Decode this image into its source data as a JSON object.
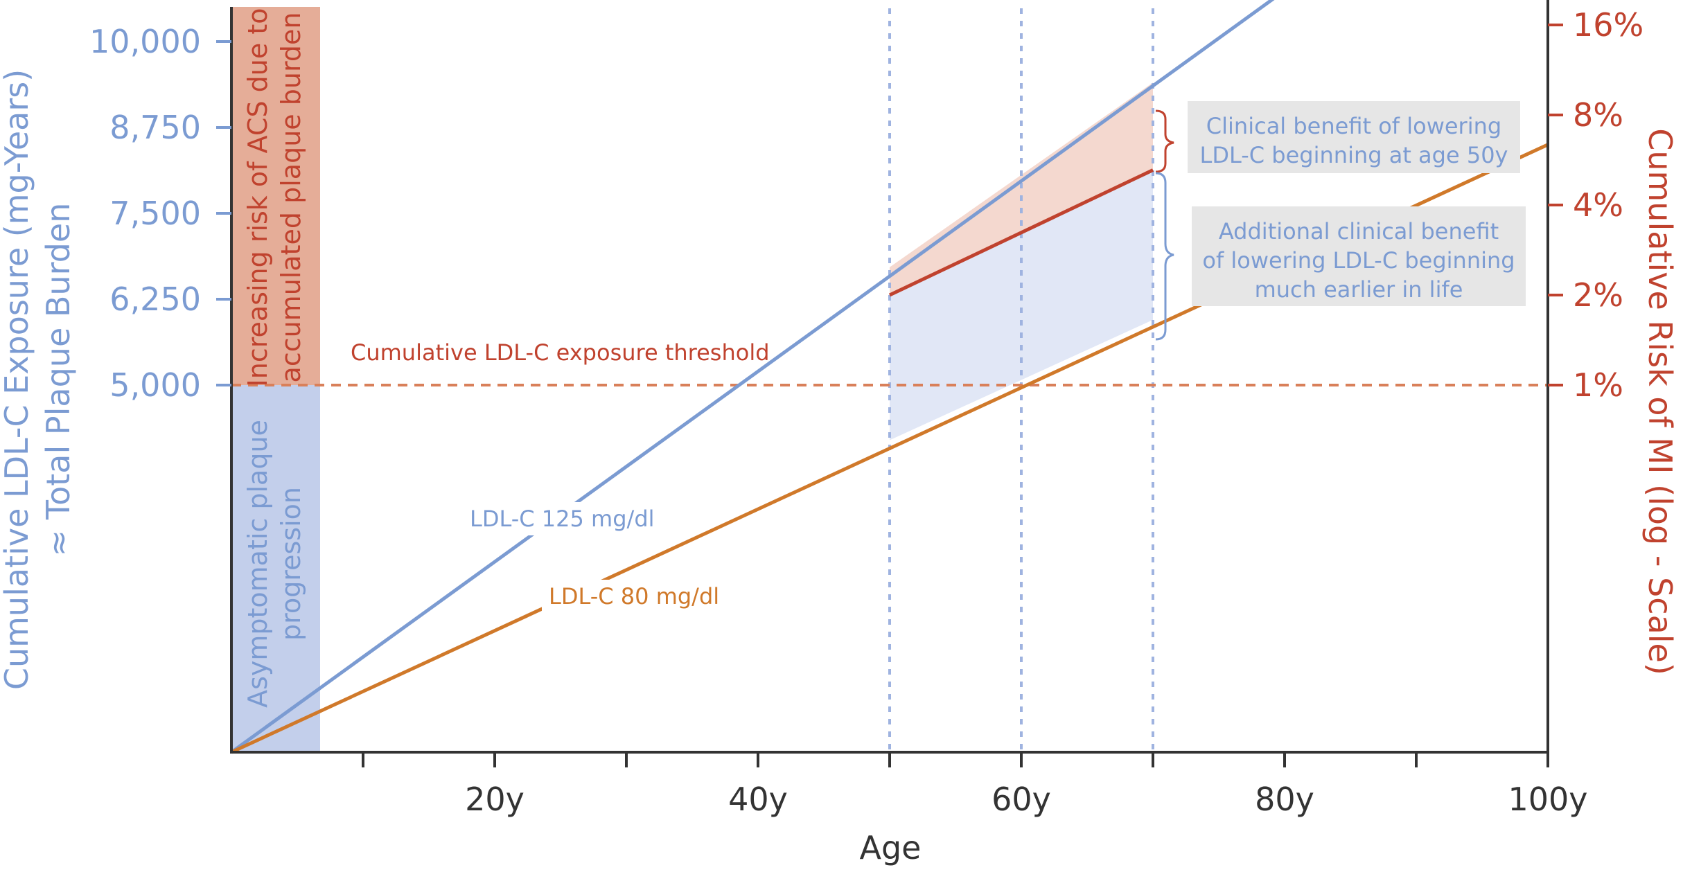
{
  "chart_data": {
    "type": "line",
    "x_axis": {
      "title": "Age",
      "ticks": [
        10,
        20,
        30,
        40,
        50,
        60,
        70,
        80,
        90,
        100
      ],
      "tick_labels": [
        "",
        "20y",
        "",
        "40y",
        "",
        "60y",
        "",
        "80y",
        "",
        "100y"
      ],
      "range": [
        0,
        100
      ]
    },
    "y_left": {
      "title_line1": "Cumulative LDL-C Exposure (mg-Years)",
      "title_line2": "≈ Total Plaque Burden",
      "tick_labels": [
        "5,000",
        "6,250",
        "7,500",
        "8,750",
        "10,000"
      ],
      "tick_values": [
        5000,
        6250,
        7500,
        8750,
        10000
      ]
    },
    "y_right": {
      "title": "Cumulative Risk of MI (log - Scale)",
      "scale": "log",
      "tick_labels": [
        "1%",
        "2%",
        "4%",
        "8%",
        "16%"
      ],
      "tick_values": [
        1,
        2,
        4,
        8,
        16
      ]
    },
    "series": [
      {
        "name": "LDL-C 125 mg/dl",
        "color": "#7b9bd2",
        "points": [
          [
            0,
            0
          ],
          [
            81,
            10880
          ]
        ]
      },
      {
        "name": "LDL-C 80 mg/dl",
        "color": "#d0792a",
        "points": [
          [
            0,
            0
          ],
          [
            100,
            8500
          ]
        ]
      },
      {
        "name": "",
        "color": "#c0422e",
        "points": [
          [
            50,
            6310
          ],
          [
            70,
            8130
          ]
        ]
      }
    ],
    "threshold": {
      "label": "Cumulative LDL-C exposure threshold",
      "value": 5000,
      "color": "#d9805a"
    },
    "reference_lines_x": [
      50,
      60,
      70
    ],
    "bands": {
      "upper_label_line1": "Increasing risk of ACS due to",
      "upper_label_line2": "accumulated plaque burden",
      "lower_label_line1": "Asymptomatic plaque",
      "lower_label_line2": "progression"
    },
    "annotations": {
      "benefit_50_line1": "Clinical benefit of lowering",
      "benefit_50_line2": "LDL-C beginning at age 50y",
      "benefit_early_line1": "Additional clinical benefit",
      "benefit_early_line2": "of lowering LDL-C beginning",
      "benefit_early_line3": "much earlier in life"
    },
    "colors": {
      "blue": "#7b9bd2",
      "orange": "#d0792a",
      "red": "#c0422e",
      "band_red": "#e5ad98",
      "band_blue": "#c3cfeb",
      "fill_red": "#f4d8cf",
      "fill_blue": "#e1e7f6",
      "box": "#e6e6e6"
    }
  }
}
